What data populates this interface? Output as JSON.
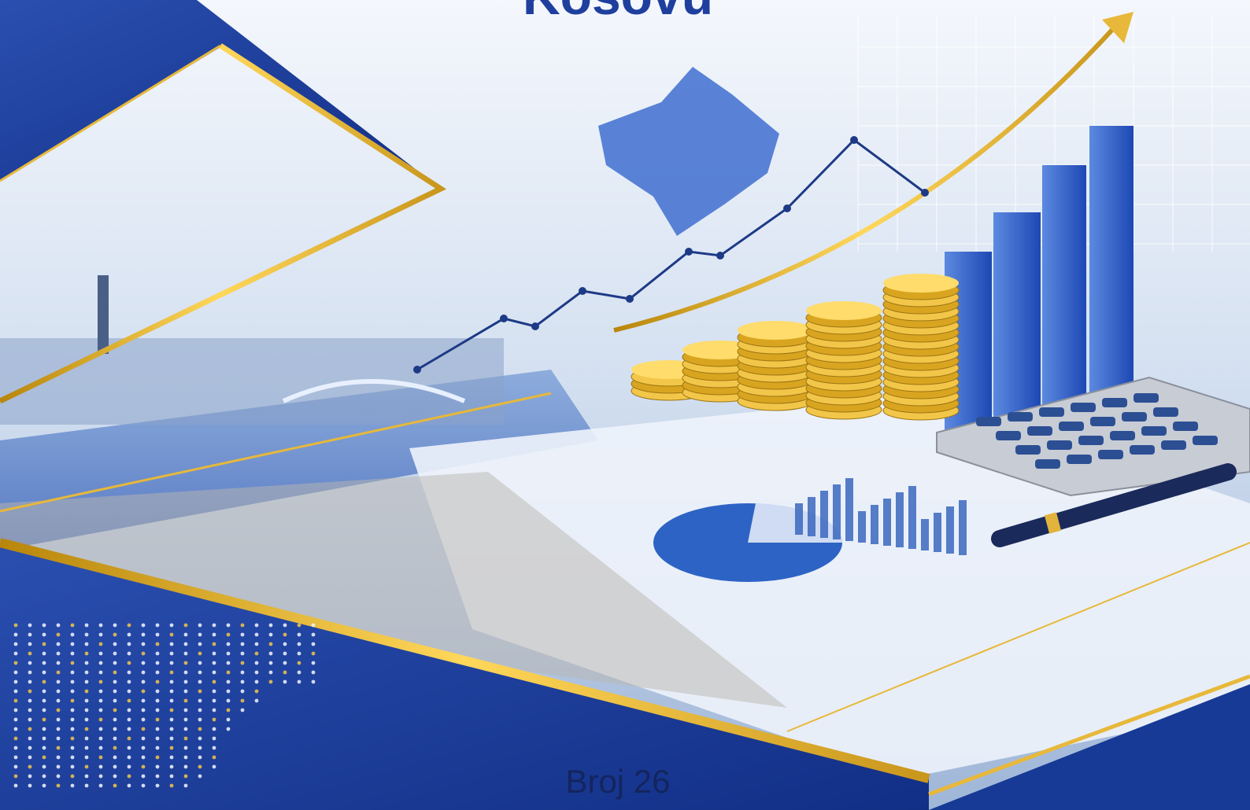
{
  "header": {
    "title": "Kosovu"
  },
  "footer": {
    "issue": "Broj 26"
  }
}
